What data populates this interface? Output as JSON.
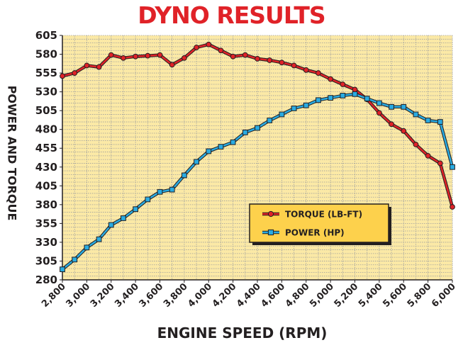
{
  "chart_data": {
    "type": "line",
    "title": "DYNO RESULTS",
    "xlabel": "ENGINE SPEED (RPM)",
    "ylabel": "POWER AND TORQUE",
    "xlim": [
      2800,
      6000
    ],
    "ylim": [
      280,
      605
    ],
    "x_ticks": [
      "2,800",
      "3,000",
      "3,200",
      "3,400",
      "3,600",
      "3,800",
      "4,000",
      "4,200",
      "4,400",
      "4,600",
      "4,800",
      "5,000",
      "5,200",
      "5,400",
      "5,600",
      "5,800",
      "6,000"
    ],
    "y_ticks": [
      "280",
      "305",
      "330",
      "355",
      "380",
      "405",
      "430",
      "455",
      "480",
      "505",
      "530",
      "555",
      "580",
      "605"
    ],
    "grid": true,
    "legend_position": "lower-right",
    "x": [
      2800,
      2900,
      3000,
      3100,
      3200,
      3300,
      3400,
      3500,
      3600,
      3700,
      3800,
      3900,
      4000,
      4100,
      4200,
      4300,
      4400,
      4500,
      4600,
      4700,
      4800,
      4900,
      5000,
      5100,
      5200,
      5300,
      5400,
      5500,
      5600,
      5700,
      5800,
      5900,
      6000
    ],
    "series": [
      {
        "name": "TORQUE (LB-FT)",
        "color": "#e02228",
        "marker": "circle",
        "values": [
          551,
          555,
          565,
          563,
          579,
          575,
          577,
          578,
          579,
          566,
          575,
          589,
          593,
          585,
          577,
          579,
          574,
          572,
          569,
          565,
          559,
          555,
          547,
          540,
          533,
          520,
          502,
          487,
          478,
          460,
          445,
          435,
          377
        ]
      },
      {
        "name": "POWER (HP)",
        "color": "#29abe2",
        "marker": "square",
        "values": [
          294,
          307,
          323,
          334,
          353,
          362,
          374,
          387,
          397,
          400,
          419,
          437,
          451,
          457,
          463,
          476,
          482,
          492,
          500,
          508,
          512,
          519,
          522,
          525,
          527,
          521,
          515,
          510,
          510,
          500,
          492,
          490,
          430
        ]
      }
    ]
  }
}
